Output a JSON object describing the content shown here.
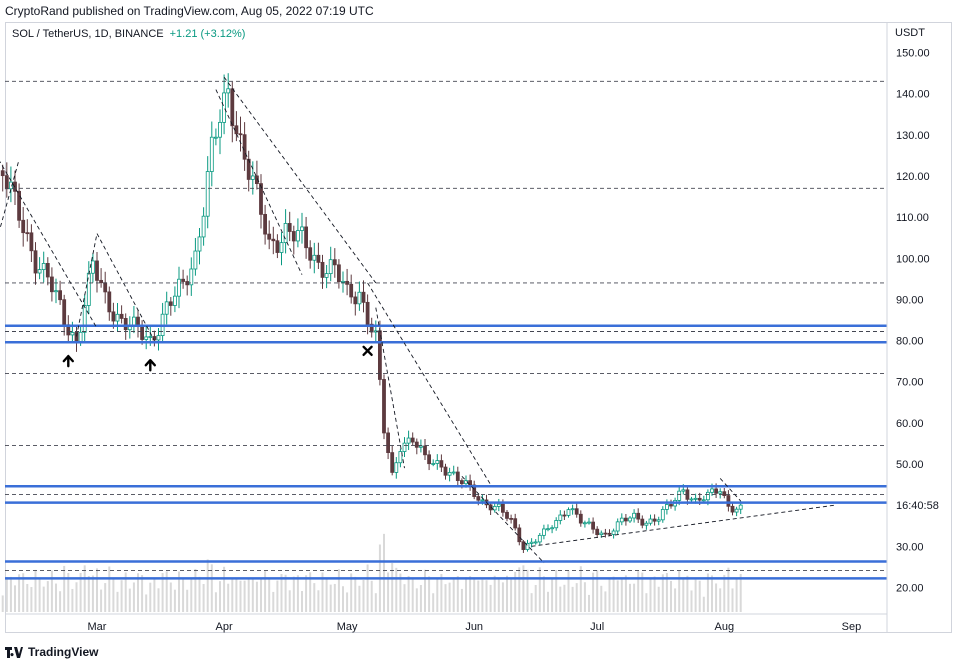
{
  "header": {
    "publish_line": "CryptoRand published on TradingView.com, Aug 05, 2022 07:19 UTC"
  },
  "legend": {
    "symbol": "SOL / TetherUS, 1D, BINANCE",
    "change": "+1.21 (+3.12%)"
  },
  "footer": {
    "brand": "TradingView"
  },
  "colors": {
    "up": "#089981",
    "down": "#5d3a3f",
    "level": "#3a6fd8",
    "dashed": "#434651",
    "volume": "#d9d9d9",
    "price_tag_bg": "#ffffff"
  },
  "chart_data": {
    "type": "candlestick",
    "title": "",
    "xlabel": "",
    "ylabel": "USDT",
    "y_axis_unit": "USDT",
    "ylim": [
      13,
      158
    ],
    "x_ticks": [
      {
        "label": "Mar",
        "date": "2022-03-01"
      },
      {
        "label": "Apr",
        "date": "2022-04-01"
      },
      {
        "label": "May",
        "date": "2022-05-01"
      },
      {
        "label": "Jun",
        "date": "2022-06-01"
      },
      {
        "label": "Jul",
        "date": "2022-07-01"
      },
      {
        "label": "Aug",
        "date": "2022-08-01"
      },
      {
        "label": "Sep",
        "date": "2022-09-01"
      }
    ],
    "y_ticks": [
      "150.00",
      "140.00",
      "130.00",
      "120.00",
      "110.00",
      "100.00",
      "90.00",
      "80.00",
      "70.00",
      "60.00",
      "50.00",
      "30.00",
      "20.00"
    ],
    "price_tag": "16:40:58",
    "price_tag_value": 40,
    "key_closes": [
      {
        "date": "2022-02-06",
        "close": 121
      },
      {
        "date": "2022-02-10",
        "close": 110
      },
      {
        "date": "2022-02-14",
        "close": 100
      },
      {
        "date": "2022-02-17",
        "close": 95
      },
      {
        "date": "2022-02-21",
        "close": 85
      },
      {
        "date": "2022-02-24",
        "close": 80
      },
      {
        "date": "2022-02-28",
        "close": 98
      },
      {
        "date": "2022-03-03",
        "close": 90
      },
      {
        "date": "2022-03-07",
        "close": 85
      },
      {
        "date": "2022-03-11",
        "close": 82
      },
      {
        "date": "2022-03-14",
        "close": 80
      },
      {
        "date": "2022-03-18",
        "close": 88
      },
      {
        "date": "2022-03-22",
        "close": 93
      },
      {
        "date": "2022-03-25",
        "close": 101
      },
      {
        "date": "2022-03-29",
        "close": 126
      },
      {
        "date": "2022-04-02",
        "close": 140
      },
      {
        "date": "2022-04-05",
        "close": 129
      },
      {
        "date": "2022-04-08",
        "close": 118
      },
      {
        "date": "2022-04-12",
        "close": 103
      },
      {
        "date": "2022-04-16",
        "close": 107
      },
      {
        "date": "2022-04-20",
        "close": 104
      },
      {
        "date": "2022-04-24",
        "close": 99
      },
      {
        "date": "2022-04-28",
        "close": 97
      },
      {
        "date": "2022-05-01",
        "close": 91
      },
      {
        "date": "2022-05-04",
        "close": 92
      },
      {
        "date": "2022-05-06",
        "close": 86
      },
      {
        "date": "2022-05-08",
        "close": 80
      },
      {
        "date": "2022-05-10",
        "close": 58
      },
      {
        "date": "2022-05-12",
        "close": 47
      },
      {
        "date": "2022-05-14",
        "close": 55
      },
      {
        "date": "2022-05-17",
        "close": 56
      },
      {
        "date": "2022-05-20",
        "close": 51
      },
      {
        "date": "2022-05-24",
        "close": 50
      },
      {
        "date": "2022-05-28",
        "close": 46
      },
      {
        "date": "2022-05-31",
        "close": 44
      },
      {
        "date": "2022-06-03",
        "close": 41
      },
      {
        "date": "2022-06-07",
        "close": 39
      },
      {
        "date": "2022-06-10",
        "close": 36
      },
      {
        "date": "2022-06-13",
        "close": 30
      },
      {
        "date": "2022-06-15",
        "close": 31
      },
      {
        "date": "2022-06-18",
        "close": 33
      },
      {
        "date": "2022-06-21",
        "close": 36
      },
      {
        "date": "2022-06-24",
        "close": 40
      },
      {
        "date": "2022-06-27",
        "close": 36
      },
      {
        "date": "2022-06-30",
        "close": 34
      },
      {
        "date": "2022-07-03",
        "close": 33
      },
      {
        "date": "2022-07-07",
        "close": 36
      },
      {
        "date": "2022-07-10",
        "close": 37
      },
      {
        "date": "2022-07-13",
        "close": 36
      },
      {
        "date": "2022-07-16",
        "close": 37
      },
      {
        "date": "2022-07-19",
        "close": 40
      },
      {
        "date": "2022-07-22",
        "close": 44
      },
      {
        "date": "2022-07-25",
        "close": 41
      },
      {
        "date": "2022-07-28",
        "close": 42
      },
      {
        "date": "2022-07-31",
        "close": 44
      },
      {
        "date": "2022-08-02",
        "close": 40
      },
      {
        "date": "2022-08-05",
        "close": 39
      }
    ],
    "horizontal_levels": [
      {
        "value": 143,
        "style": "dashed"
      },
      {
        "value": 117,
        "style": "dashed"
      },
      {
        "value": 94,
        "style": "dashed"
      },
      {
        "value": 83.6,
        "style": "solid"
      },
      {
        "value": 82.2,
        "style": "dashed"
      },
      {
        "value": 79.6,
        "style": "solid"
      },
      {
        "value": 72,
        "style": "dashed"
      },
      {
        "value": 54.5,
        "style": "dashed"
      },
      {
        "value": 44.6,
        "style": "solid"
      },
      {
        "value": 42.6,
        "style": "dashed"
      },
      {
        "value": 40.6,
        "style": "solid"
      },
      {
        "value": 26.3,
        "style": "solid"
      },
      {
        "value": 24.1,
        "style": "dashed"
      },
      {
        "value": 22.2,
        "style": "solid"
      }
    ],
    "trendlines": [
      {
        "from": {
          "date": "2022-02-05",
          "value": 124
        },
        "to": {
          "date": "2022-03-01",
          "value": 83
        }
      },
      {
        "from": {
          "date": "2022-02-05",
          "value": 106
        },
        "to": {
          "date": "2022-02-10",
          "value": 124
        }
      },
      {
        "from": {
          "date": "2022-02-24",
          "value": 81
        },
        "to": {
          "date": "2022-03-01",
          "value": 106
        }
      },
      {
        "from": {
          "date": "2022-03-01",
          "value": 106
        },
        "to": {
          "date": "2022-03-15",
          "value": 80
        }
      },
      {
        "from": {
          "date": "2022-04-01",
          "value": 144
        },
        "to": {
          "date": "2022-05-08",
          "value": 94
        }
      },
      {
        "from": {
          "date": "2022-03-30",
          "value": 141
        },
        "to": {
          "date": "2022-04-20",
          "value": 96
        }
      },
      {
        "from": {
          "date": "2022-05-06",
          "value": 94
        },
        "to": {
          "date": "2022-06-05",
          "value": 45
        }
      },
      {
        "from": {
          "date": "2022-05-08",
          "value": 88
        },
        "to": {
          "date": "2022-05-15",
          "value": 49
        }
      },
      {
        "from": {
          "date": "2022-05-29",
          "value": 47
        },
        "to": {
          "date": "2022-06-18",
          "value": 26
        }
      },
      {
        "from": {
          "date": "2022-06-15",
          "value": 30
        },
        "to": {
          "date": "2022-08-28",
          "value": 40
        }
      },
      {
        "from": {
          "date": "2022-07-31",
          "value": 46.5
        },
        "to": {
          "date": "2022-08-05",
          "value": 41
        }
      }
    ],
    "markers": [
      {
        "type": "arrow-up",
        "date": "2022-02-22",
        "value": 75
      },
      {
        "type": "arrow-up",
        "date": "2022-03-14",
        "value": 74
      },
      {
        "type": "cross",
        "date": "2022-05-06",
        "value": 77.5
      }
    ]
  }
}
